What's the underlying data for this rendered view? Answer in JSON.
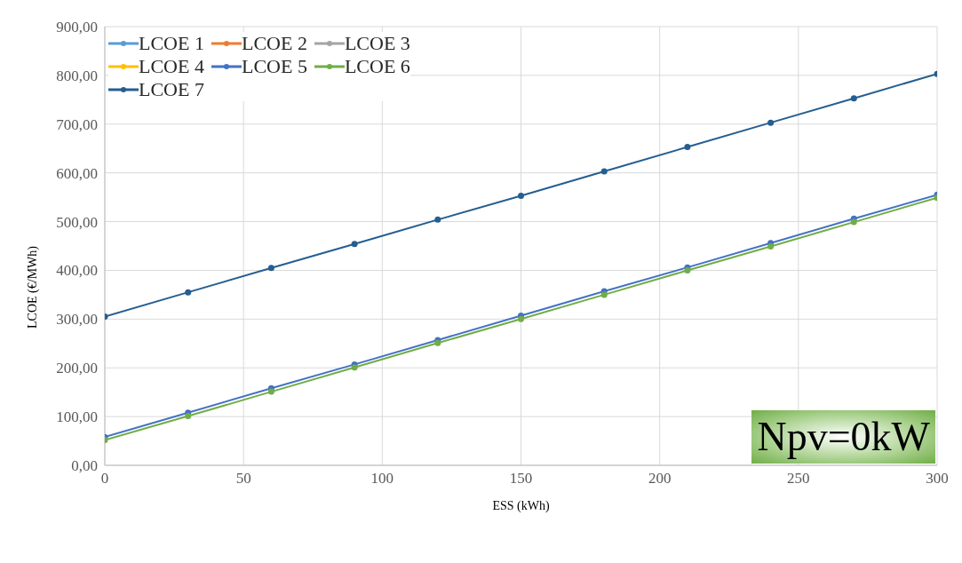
{
  "chart_data": {
    "type": "line",
    "xlabel": "ESS (kWh)",
    "ylabel": "LCOE (€/MWh)",
    "x": [
      0,
      30,
      60,
      90,
      120,
      150,
      180,
      210,
      240,
      270,
      300
    ],
    "series": [
      {
        "name": "LCOE 1",
        "color": "#5b9bd5",
        "values": [
          null,
          null,
          null,
          null,
          null,
          null,
          null,
          null,
          null,
          null,
          null
        ]
      },
      {
        "name": "LCOE 2",
        "color": "#ed7d31",
        "values": [
          null,
          null,
          null,
          null,
          null,
          null,
          null,
          null,
          null,
          null,
          null
        ]
      },
      {
        "name": "LCOE 3",
        "color": "#a5a5a5",
        "values": [
          null,
          null,
          null,
          null,
          null,
          null,
          null,
          null,
          null,
          null,
          null
        ]
      },
      {
        "name": "LCOE 4",
        "color": "#ffc000",
        "values": [
          null,
          null,
          null,
          null,
          null,
          null,
          null,
          null,
          null,
          null,
          null
        ]
      },
      {
        "name": "LCOE 5",
        "color": "#4472c4",
        "values": [
          58,
          108,
          158,
          207,
          257,
          307,
          357,
          406,
          456,
          506,
          555
        ]
      },
      {
        "name": "LCOE 6",
        "color": "#70ad47",
        "values": [
          52,
          101,
          151,
          201,
          251,
          300,
          350,
          400,
          449,
          499,
          549
        ]
      },
      {
        "name": "LCOE 7",
        "color": "#255e91",
        "values": [
          305,
          355,
          405,
          454,
          504,
          553,
          603,
          653,
          703,
          753,
          803
        ]
      }
    ],
    "xlim": [
      0,
      300
    ],
    "xticks": [
      0,
      50,
      100,
      150,
      200,
      250,
      300
    ],
    "ylim": [
      0,
      900
    ],
    "yticks": [
      {
        "value": 0,
        "label": "0,00"
      },
      {
        "value": 100,
        "label": "100,00"
      },
      {
        "value": 200,
        "label": "200,00"
      },
      {
        "value": 300,
        "label": "300,00"
      },
      {
        "value": 400,
        "label": "400,00"
      },
      {
        "value": 500,
        "label": "500,00"
      },
      {
        "value": 600,
        "label": "600,00"
      },
      {
        "value": 700,
        "label": "700,00"
      },
      {
        "value": 800,
        "label": "800,00"
      },
      {
        "value": 900,
        "label": "900,00"
      }
    ],
    "grid": true,
    "legend": "top left",
    "marker": "circle",
    "line_style": "solid",
    "annotations": [
      "Npv=0kW"
    ]
  }
}
